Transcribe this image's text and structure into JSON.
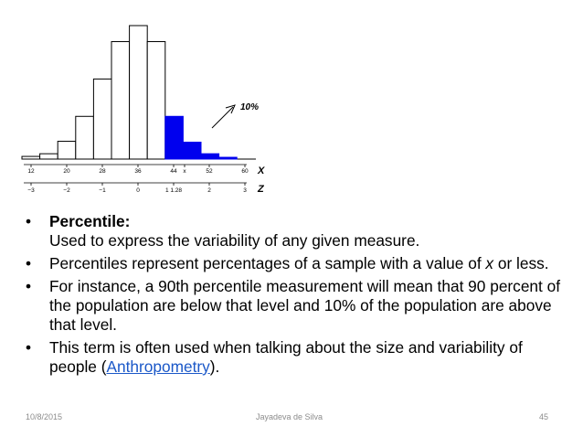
{
  "chart_data": {
    "type": "bar",
    "x_ticks": [
      "12",
      "20",
      "28",
      "36",
      "44",
      "x",
      "52",
      "60"
    ],
    "x_axis_letter": "X",
    "z_ticks": [
      "−3",
      "−2",
      "−1",
      "0",
      "1 1.28",
      "2",
      "3"
    ],
    "z_axis_letter": "Z",
    "annotation": "10%",
    "highlight_color": "#0000ee",
    "bars": [
      {
        "value": 3,
        "highlight": false
      },
      {
        "value": 6,
        "highlight": false
      },
      {
        "value": 20,
        "highlight": false
      },
      {
        "value": 48,
        "highlight": false
      },
      {
        "value": 90,
        "highlight": false
      },
      {
        "value": 132,
        "highlight": false
      },
      {
        "value": 150,
        "highlight": false
      },
      {
        "value": 132,
        "highlight": false
      },
      {
        "value": 48,
        "highlight": true
      },
      {
        "value": 19,
        "highlight": true
      },
      {
        "value": 6,
        "highlight": true
      },
      {
        "value": 2,
        "highlight": true
      }
    ]
  },
  "bullets": [
    {
      "term": "Percentile:",
      "text": "Used to express the variability of any given measure."
    },
    {
      "text_before": "Percentiles represent percentages of a sample with a value of ",
      "italic": "x",
      "text_after": " or less."
    },
    {
      "text": " For instance, a 90th percentile measurement will mean that 90 percent of the population are below that level and 10% of the population are above that level."
    },
    {
      "text_before": "This term is often used when talking about the size and variability of people (",
      "link": "Anthropometry",
      "text_after": ")."
    }
  ],
  "bullet_symbol": "•",
  "footer": {
    "date": "10/8/2015",
    "author": "Jayadeva de Silva",
    "page": "45"
  }
}
